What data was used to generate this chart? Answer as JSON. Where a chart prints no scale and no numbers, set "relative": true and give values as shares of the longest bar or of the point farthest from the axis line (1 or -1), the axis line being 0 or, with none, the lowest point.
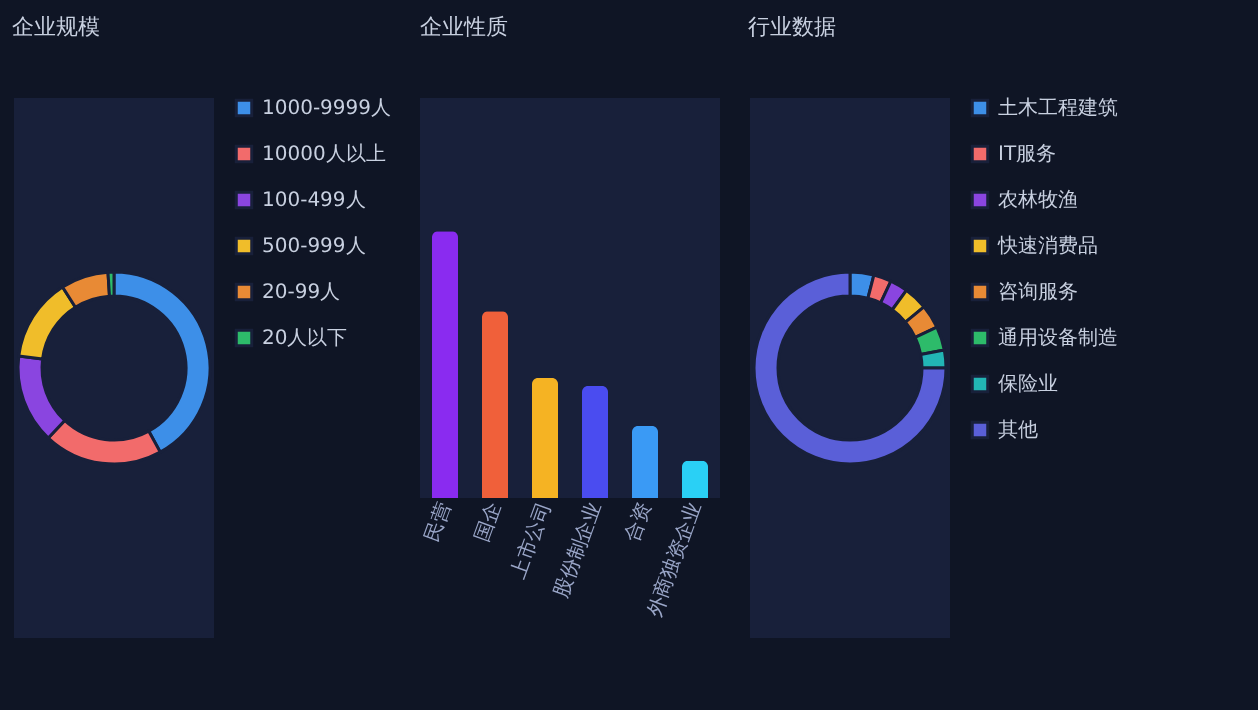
{
  "chart_data": [
    {
      "type": "donut",
      "title": "企业规模",
      "categories": [
        "1000-9999人",
        "10000人以上",
        "100-499人",
        "500-999人",
        "20-99人",
        "20人以下"
      ],
      "values": [
        42,
        20,
        15,
        14,
        8,
        1
      ],
      "colors": [
        "#3d8fe8",
        "#f26b6b",
        "#8a45e0",
        "#f0bd2a",
        "#e88a35",
        "#2dbb6a"
      ],
      "legend": "right"
    },
    {
      "type": "bar",
      "title": "企业性质",
      "categories": [
        "民营",
        "国企",
        "上市公司",
        "股份制企业",
        "合资",
        "外商独资企业"
      ],
      "values": [
        1,
        0.7,
        0.45,
        0.42,
        0.27,
        0.14
      ],
      "colors": [
        "#8a2bf0",
        "#f0603a",
        "#f5b323",
        "#4a4cf0",
        "#3a9af5",
        "#2ad0f5"
      ],
      "relative": true
    },
    {
      "type": "donut",
      "title": "行业数据",
      "categories": [
        "土木工程建筑",
        "IT服务",
        "农林牧渔",
        "快速消费品",
        "咨询服务",
        "通用设备制造",
        "保险业",
        "其他"
      ],
      "values": [
        4,
        3,
        3,
        4,
        4,
        4,
        3,
        75
      ],
      "colors": [
        "#3d8fe8",
        "#f26b6b",
        "#8a45e0",
        "#f0bd2a",
        "#e88a35",
        "#2dbb6a",
        "#22b5b5",
        "#5a5fd8"
      ],
      "legend": "right"
    }
  ]
}
